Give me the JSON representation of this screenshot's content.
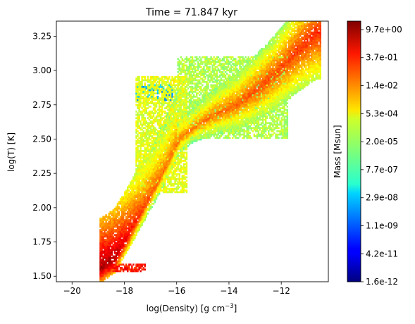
{
  "chart_data": {
    "type": "heatmap",
    "title": "Time = 71.847 kyr",
    "xlabel": "log(Density) [g cm",
    "xlabel_exponent": "−3",
    "xlabel_close": "]",
    "ylabel": "log(T) [K]",
    "xlim": [
      -20.6,
      -10.2
    ],
    "ylim": [
      1.46,
      3.36
    ],
    "x_ticks": [
      -20,
      -18,
      -16,
      -14,
      -12
    ],
    "x_tick_labels": [
      "−20",
      "−18",
      "−16",
      "−14",
      "−12"
    ],
    "y_ticks": [
      1.5,
      1.75,
      2.0,
      2.25,
      2.5,
      2.75,
      3.0,
      3.25
    ],
    "y_tick_labels": [
      "1.50",
      "1.75",
      "2.00",
      "2.25",
      "2.50",
      "2.75",
      "3.00",
      "3.25"
    ],
    "grid": false,
    "colormap": "jet",
    "colorbar": {
      "label": "Mass [Msun]",
      "scale": "log",
      "range": [
        1.6e-12,
        26.0
      ],
      "tick_labels": [
        "1.6e-12",
        "4.2e-11",
        "1.1e-09",
        "2.9e-08",
        "7.7e-07",
        "2.0e-05",
        "5.3e-04",
        "1.4e-02",
        "3.7e-01",
        "9.7e+00"
      ]
    },
    "ridge": [
      {
        "x": -18.9,
        "y": 1.55,
        "level": 0.97
      },
      {
        "x": -18.4,
        "y": 1.62,
        "level": 0.95
      },
      {
        "x": -17.9,
        "y": 1.78,
        "level": 0.88
      },
      {
        "x": -17.4,
        "y": 1.95,
        "level": 0.82
      },
      {
        "x": -16.9,
        "y": 2.12,
        "level": 0.78
      },
      {
        "x": -16.4,
        "y": 2.3,
        "level": 0.76
      },
      {
        "x": -15.9,
        "y": 2.5,
        "level": 0.76
      },
      {
        "x": -15.2,
        "y": 2.6,
        "level": 0.76
      },
      {
        "x": -14.5,
        "y": 2.68,
        "level": 0.77
      },
      {
        "x": -13.7,
        "y": 2.75,
        "level": 0.78
      },
      {
        "x": -13.0,
        "y": 2.85,
        "level": 0.8
      },
      {
        "x": -12.2,
        "y": 2.98,
        "level": 0.8
      },
      {
        "x": -11.4,
        "y": 3.14,
        "level": 0.82
      },
      {
        "x": -10.7,
        "y": 3.27,
        "level": 0.84
      }
    ],
    "regions": [
      {
        "name": "dense-floor",
        "x_range": [
          -19.0,
          -17.2
        ],
        "y_range": [
          1.53,
          1.58
        ],
        "level": 0.85
      },
      {
        "name": "cold-low-density",
        "x_range": [
          -17.6,
          -15.6
        ],
        "y_range": [
          2.1,
          2.95
        ],
        "level": 0.6
      },
      {
        "name": "warm-envelope",
        "x_range": [
          -16.0,
          -11.8
        ],
        "y_range": [
          2.5,
          3.1
        ],
        "level": 0.55
      },
      {
        "name": "hot-tail",
        "x_range": [
          -17.6,
          -16.2
        ],
        "y_range": [
          2.78,
          2.9
        ],
        "level": 0.3
      }
    ]
  }
}
